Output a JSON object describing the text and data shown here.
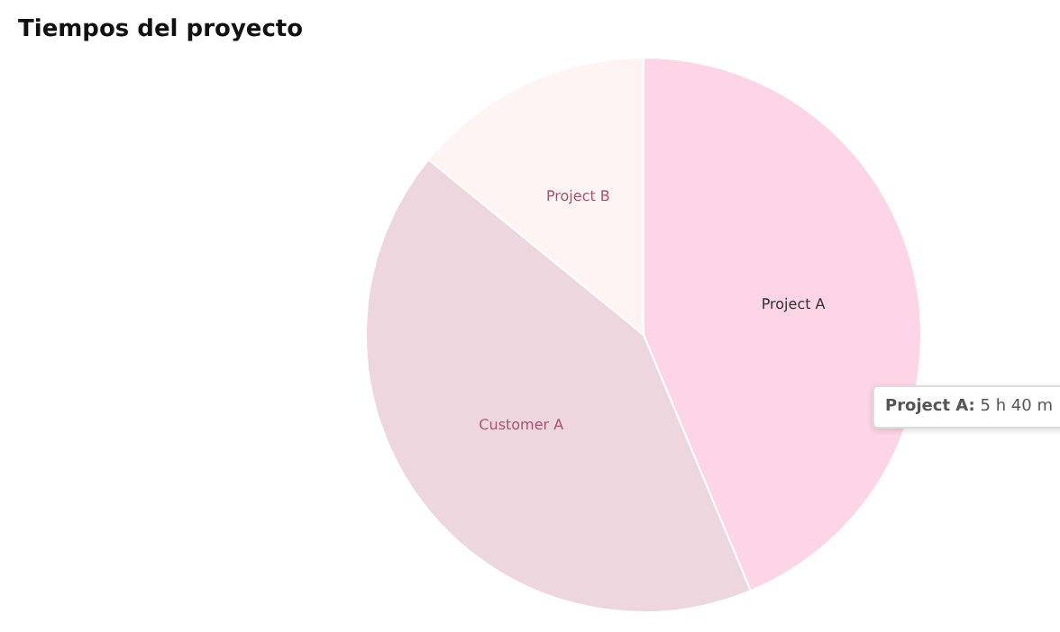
{
  "chart_data": {
    "type": "pie",
    "title": "Tiempos del proyecto",
    "categories": [
      "Project A",
      "Customer A",
      "Project B"
    ],
    "values": [
      43.7,
      42.2,
      14.1
    ],
    "colors": [
      "#fdd5e6",
      "#edd6de",
      "#fef4f4"
    ],
    "annotations": [
      "Project A: 5 h 40 m"
    ]
  }
}
